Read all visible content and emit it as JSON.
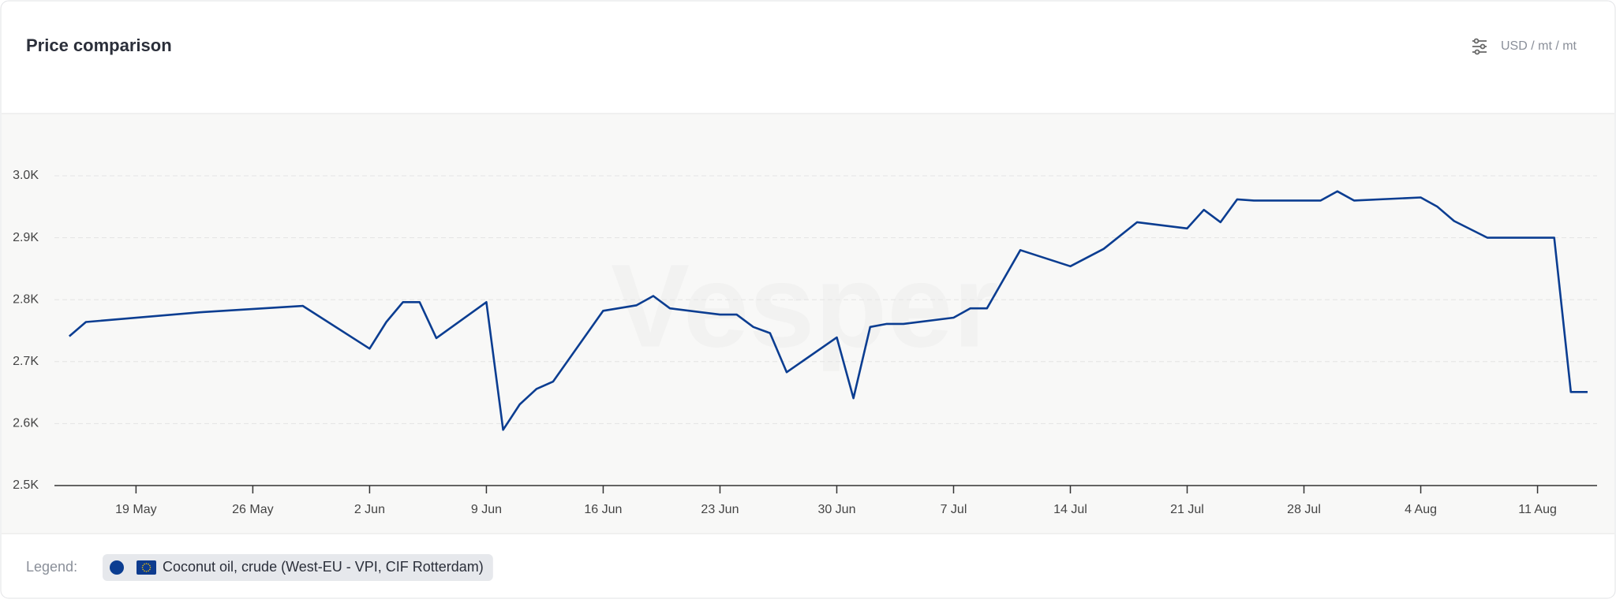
{
  "header": {
    "title": "Price comparison",
    "units": "USD / mt / mt"
  },
  "watermark": "Vesper",
  "legend_label": "Legend:",
  "chart_data": {
    "type": "line",
    "x": [
      "15 May",
      "16 May",
      "23 May",
      "29 May",
      "2 Jun",
      "3 Jun",
      "4 Jun",
      "5 Jun",
      "6 Jun",
      "9 Jun",
      "10 Jun",
      "11 Jun",
      "12 Jun",
      "13 Jun",
      "16 Jun",
      "18 Jun",
      "19 Jun",
      "20 Jun",
      "23 Jun",
      "24 Jun",
      "25 Jun",
      "26 Jun",
      "27 Jun",
      "30 Jun",
      "1 Jul",
      "2 Jul",
      "3 Jul",
      "4 Jul",
      "7 Jul",
      "8 Jul",
      "9 Jul",
      "11 Jul",
      "14 Jul",
      "16 Jul",
      "18 Jul",
      "21 Jul",
      "22 Jul",
      "23 Jul",
      "24 Jul",
      "25 Jul",
      "29 Jul",
      "30 Jul",
      "31 Jul",
      "4 Aug",
      "5 Aug",
      "6 Aug",
      "8 Aug",
      "12 Aug",
      "13 Aug",
      "14 Aug"
    ],
    "series": [
      {
        "name": "Coconut oil, crude (West-EU - VPI, CIF Rotterdam)",
        "color": "#0b3d91",
        "values": [
          2741,
          2764,
          2780,
          2790,
          2721,
          2764,
          2796,
          2796,
          2738,
          2796,
          2590,
          2631,
          2656,
          2668,
          2782,
          2791,
          2806,
          2786,
          2776,
          2776,
          2756,
          2746,
          2683,
          2739,
          2641,
          2756,
          2761,
          2761,
          2771,
          2786,
          2786,
          2880,
          2854,
          2882,
          2925,
          2915,
          2945,
          2925,
          2962,
          2960,
          2960,
          2975,
          2960,
          2965,
          2950,
          2927,
          2900,
          2900,
          2651,
          2651
        ]
      }
    ],
    "xticks": [
      "19 May",
      "26 May",
      "2 Jun",
      "9 Jun",
      "16 Jun",
      "23 Jun",
      "30 Jun",
      "7 Jul",
      "14 Jul",
      "21 Jul",
      "28 Jul",
      "4 Aug",
      "11 Aug"
    ],
    "ylim": [
      2500,
      3000
    ],
    "yticks": [
      {
        "value": 2500,
        "label": "2.5K"
      },
      {
        "value": 2600,
        "label": "2.6K"
      },
      {
        "value": 2700,
        "label": "2.7K"
      },
      {
        "value": 2800,
        "label": "2.8K"
      },
      {
        "value": 2900,
        "label": "2.9K"
      },
      {
        "value": 3000,
        "label": "3.0K"
      }
    ],
    "grid": true
  }
}
